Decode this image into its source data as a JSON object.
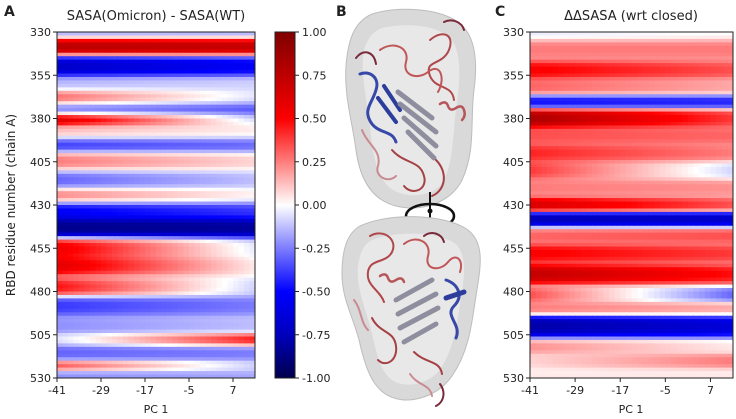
{
  "panels": {
    "A": {
      "letter": "A",
      "title": "SASA(Omicron) - SASA(WT)",
      "ylabel": "RBD residue number (chain A)",
      "xlabel": "PC 1",
      "yticks": [
        "330",
        "355",
        "380",
        "405",
        "430",
        "455",
        "480",
        "505",
        "530"
      ],
      "xticks": [
        "-41",
        "-29",
        "-17",
        "-5",
        "7"
      ]
    },
    "B": {
      "letter": "B",
      "structure_top": "rbd-structure-top-view",
      "structure_bottom": "rbd-structure-rotated-view",
      "rotation_icon": "rotation-arrow-icon"
    },
    "C": {
      "letter": "C",
      "title": "ΔΔSASA (wrt closed)",
      "xlabel": "PC 1",
      "yticks": [
        "330",
        "355",
        "380",
        "405",
        "430",
        "455",
        "480",
        "505",
        "530"
      ],
      "xticks": [
        "-41",
        "-29",
        "-17",
        "-5",
        "7"
      ]
    },
    "colorbar": {
      "ticks": [
        "1.00",
        "0.75",
        "0.50",
        "0.25",
        "0.00",
        "-0.25",
        "-0.50",
        "-0.75",
        "-1.00"
      ],
      "range": [
        -1.0,
        1.0
      ]
    }
  },
  "chart_data": [
    {
      "type": "heatmap",
      "panel": "A",
      "title": "SASA(Omicron) - SASA(WT)",
      "xlabel": "PC 1",
      "ylabel": "RBD residue number (chain A)",
      "xlim": [
        -41,
        13
      ],
      "ylim": [
        330,
        530
      ],
      "x_ticks": [
        -41,
        -29,
        -17,
        -5,
        7
      ],
      "y_ticks": [
        330,
        355,
        380,
        405,
        430,
        455,
        480,
        505,
        530
      ],
      "colormap": "seismic",
      "color_range": [
        -1.0,
        1.0
      ],
      "bands": [
        {
          "residue": 330,
          "left": -0.2,
          "right": -0.2,
          "width": 5
        },
        {
          "residue": 338,
          "left": 0.9,
          "right": 0.85,
          "width": 5
        },
        {
          "residue": 350,
          "left": -0.75,
          "right": -0.6,
          "width": 6
        },
        {
          "residue": 360,
          "left": -0.15,
          "right": -0.1,
          "width": 5
        },
        {
          "residue": 368,
          "left": 0.35,
          "right": -0.05,
          "width": 5
        },
        {
          "residue": 375,
          "left": -0.35,
          "right": -0.4,
          "width": 5
        },
        {
          "residue": 380,
          "left": 0.85,
          "right": -0.05,
          "width": 4
        },
        {
          "residue": 388,
          "left": 0.15,
          "right": 0.05,
          "width": 5
        },
        {
          "residue": 395,
          "left": -0.45,
          "right": -0.35,
          "width": 5
        },
        {
          "residue": 405,
          "left": 0.3,
          "right": 0.1,
          "width": 6
        },
        {
          "residue": 415,
          "left": -0.35,
          "right": -0.15,
          "width": 6
        },
        {
          "residue": 425,
          "left": 0.3,
          "right": 0.05,
          "width": 5
        },
        {
          "residue": 433,
          "left": -0.6,
          "right": -0.45,
          "width": 6
        },
        {
          "residue": 443,
          "left": -0.95,
          "right": -0.9,
          "width": 6
        },
        {
          "residue": 455,
          "left": 0.65,
          "right": -0.05,
          "width": 6
        },
        {
          "residue": 465,
          "left": 0.7,
          "right": 0.05,
          "width": 5
        },
        {
          "residue": 478,
          "left": 0.55,
          "right": -0.1,
          "width": 5
        },
        {
          "residue": 488,
          "left": -0.45,
          "right": -0.3,
          "width": 6
        },
        {
          "residue": 500,
          "left": -0.25,
          "right": -0.15,
          "width": 5
        },
        {
          "residue": 508,
          "left": -0.05,
          "right": 0.55,
          "width": 4
        },
        {
          "residue": 515,
          "left": -0.35,
          "right": -0.3,
          "width": 5
        },
        {
          "residue": 523,
          "left": 0.4,
          "right": -0.1,
          "width": 3
        },
        {
          "residue": 530,
          "left": -0.25,
          "right": -0.2,
          "width": 5
        }
      ]
    },
    {
      "type": "heatmap",
      "panel": "C",
      "title": "ΔΔSASA (wrt closed)",
      "xlabel": "PC 1",
      "xlim": [
        -41,
        13
      ],
      "ylim": [
        330,
        530
      ],
      "x_ticks": [
        -41,
        -29,
        -17,
        -5,
        7
      ],
      "y_ticks": [
        330,
        355,
        380,
        405,
        430,
        455,
        480,
        505,
        530
      ],
      "colormap": "seismic",
      "color_range": [
        -1.0,
        1.0
      ],
      "bands": [
        {
          "residue": 330,
          "left": -0.05,
          "right": 0.0,
          "width": 5
        },
        {
          "residue": 340,
          "left": 0.3,
          "right": 0.3,
          "width": 6
        },
        {
          "residue": 352,
          "left": 0.6,
          "right": 0.4,
          "width": 5
        },
        {
          "residue": 362,
          "left": 0.35,
          "right": 0.2,
          "width": 5
        },
        {
          "residue": 370,
          "left": -0.55,
          "right": -0.5,
          "width": 4
        },
        {
          "residue": 380,
          "left": 0.95,
          "right": 0.45,
          "width": 5
        },
        {
          "residue": 390,
          "left": 0.4,
          "right": 0.35,
          "width": 5
        },
        {
          "residue": 400,
          "left": 0.5,
          "right": 0.3,
          "width": 5
        },
        {
          "residue": 410,
          "left": 0.45,
          "right": -0.1,
          "width": 5
        },
        {
          "residue": 420,
          "left": 0.3,
          "right": 0.25,
          "width": 5
        },
        {
          "residue": 430,
          "left": 0.75,
          "right": 0.4,
          "width": 4
        },
        {
          "residue": 438,
          "left": -0.8,
          "right": -0.75,
          "width": 4
        },
        {
          "residue": 448,
          "left": 0.35,
          "right": 0.4,
          "width": 4
        },
        {
          "residue": 458,
          "left": 0.6,
          "right": 0.45,
          "width": 5
        },
        {
          "residue": 470,
          "left": 0.85,
          "right": 0.55,
          "width": 5
        },
        {
          "residue": 482,
          "left": 0.4,
          "right": -0.35,
          "width": 4
        },
        {
          "residue": 490,
          "left": 0.3,
          "right": 0.2,
          "width": 4
        },
        {
          "residue": 500,
          "left": -0.85,
          "right": -0.7,
          "width": 6
        },
        {
          "residue": 512,
          "left": 0.25,
          "right": 0.05,
          "width": 4
        },
        {
          "residue": 520,
          "left": 0.1,
          "right": 0.3,
          "width": 4
        },
        {
          "residue": 530,
          "left": 0.05,
          "right": 0.05,
          "width": 4
        }
      ]
    }
  ]
}
